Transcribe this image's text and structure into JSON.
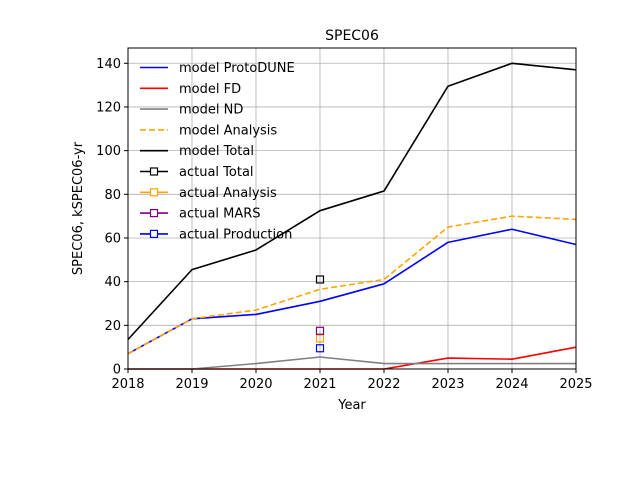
{
  "chart_data": {
    "type": "line",
    "title": "SPEC06",
    "xlabel": "Year",
    "ylabel": "SPEC06, kSPEC06-yr",
    "xlim": [
      2018,
      2025
    ],
    "ylim": [
      0,
      147
    ],
    "xticks": [
      2018,
      2019,
      2020,
      2021,
      2022,
      2023,
      2024,
      2025
    ],
    "yticks": [
      0,
      20,
      40,
      60,
      80,
      100,
      120,
      140
    ],
    "grid": true,
    "legend": "upper-left",
    "x": [
      2018,
      2019,
      2020,
      2021,
      2022,
      2023,
      2024,
      2025
    ],
    "series": [
      {
        "name": "model ProtoDUNE",
        "color": "#0000ff",
        "dash": "solid",
        "values": [
          7,
          23,
          25,
          31,
          39,
          58,
          64,
          57
        ]
      },
      {
        "name": "model FD",
        "color": "#ff0000",
        "dash": "solid",
        "values": [
          0,
          0,
          0,
          0,
          0,
          5,
          4.5,
          10
        ]
      },
      {
        "name": "model ND",
        "color": "#808080",
        "dash": "solid",
        "values": [
          0,
          0,
          2.5,
          5.5,
          2.5,
          2.5,
          2.5,
          2.5
        ]
      },
      {
        "name": "model Analysis",
        "color": "#ffa500",
        "dash": "dashed",
        "values": [
          7,
          23,
          27,
          36.5,
          41,
          65,
          70,
          68.5
        ]
      },
      {
        "name": "model Total",
        "color": "#000000",
        "dash": "solid",
        "values": [
          13.5,
          45.5,
          54.5,
          72.5,
          81.5,
          129.5,
          140,
          137
        ]
      }
    ],
    "points": [
      {
        "name": "actual Total",
        "color": "#000000",
        "x": 2021,
        "y": 41
      },
      {
        "name": "actual Analysis",
        "color": "#ffa500",
        "x": 2021,
        "y": 14
      },
      {
        "name": "actual MARS",
        "color": "#800080",
        "x": 2021,
        "y": 17.5
      },
      {
        "name": "actual Production",
        "color": "#0000ff",
        "x": 2021,
        "y": 9.5
      }
    ]
  }
}
